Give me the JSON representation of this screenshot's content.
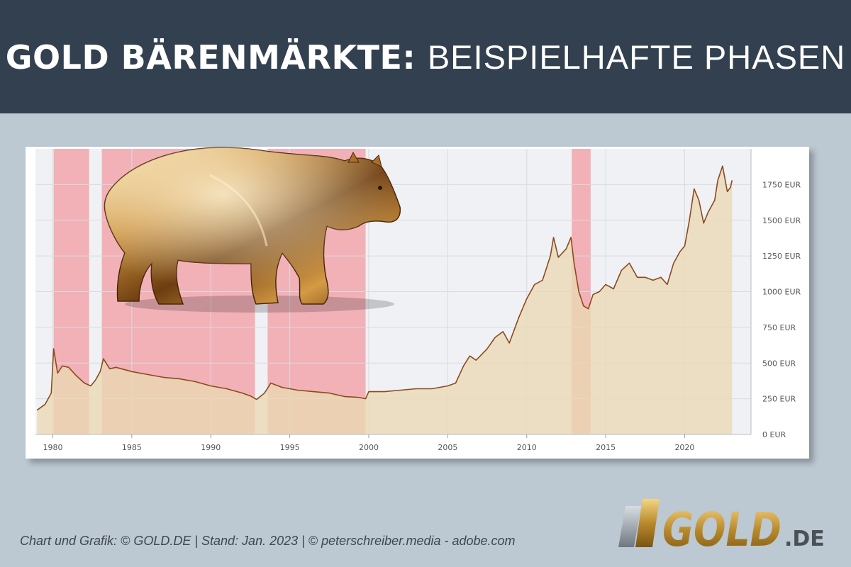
{
  "header": {
    "title_bold": "GOLD BÄRENMÄRKTE:",
    "title_light": "BEISPIELHAFTE PHASEN",
    "background": "#33404f"
  },
  "footer": {
    "credit": "Chart und Grafik: © GOLD.DE  |  Stand: Jan. 2023  |  © peterschreiber.media - adobe.com"
  },
  "logo": {
    "text_main": "GOLD",
    "text_suffix": ".DE"
  },
  "illustration": {
    "subject": "golden-bear-figure"
  },
  "chart_data": {
    "type": "area",
    "title": "",
    "xlabel": "",
    "ylabel": "",
    "xlim": [
      1978.9,
      2024.2
    ],
    "ylim": [
      0,
      2000
    ],
    "x_ticks": [
      1980,
      1985,
      1990,
      1995,
      2000,
      2005,
      2010,
      2015,
      2020
    ],
    "y_ticks": [
      {
        "value": 0,
        "label": "0 EUR"
      },
      {
        "value": 250,
        "label": "250 EUR"
      },
      {
        "value": 500,
        "label": "500 EUR"
      },
      {
        "value": 750,
        "label": "750 EUR"
      },
      {
        "value": 1000,
        "label": "1000 EUR"
      },
      {
        "value": 1250,
        "label": "1250 EUR"
      },
      {
        "value": 1500,
        "label": "1500 EUR"
      },
      {
        "value": 1750,
        "label": "1750 EUR"
      }
    ],
    "grid": true,
    "axis_position": "right",
    "colors": {
      "line": "#8b4a1e",
      "fill": "#ead9b4",
      "bear_band": "#f2a6ab"
    },
    "series": [
      {
        "x": [
          1979.0,
          1979.5,
          1979.9,
          1980.05,
          1980.3,
          1980.6,
          1981.0,
          1981.5,
          1982.0,
          1982.4,
          1982.7,
          1983.0,
          1983.2,
          1983.6,
          1984.0,
          1985.0,
          1986.0,
          1987.0,
          1988.0,
          1989.0,
          1990.0,
          1991.0,
          1992.0,
          1992.5,
          1992.9,
          1993.4,
          1993.8,
          1994.5,
          1995.5,
          1996.5,
          1997.5,
          1998.5,
          1999.3,
          1999.8,
          2000.0,
          2001.0,
          2002.0,
          2003.0,
          2004.0,
          2005.0,
          2005.5,
          2006.0,
          2006.4,
          2006.8,
          2007.5,
          2008.0,
          2008.5,
          2008.9,
          2009.5,
          2010.0,
          2010.5,
          2011.0,
          2011.5,
          2011.7,
          2012.0,
          2012.5,
          2012.8,
          2013.0,
          2013.3,
          2013.6,
          2013.9,
          2014.2,
          2014.6,
          2015.0,
          2015.5,
          2016.0,
          2016.5,
          2017.0,
          2017.5,
          2018.0,
          2018.5,
          2018.9,
          2019.3,
          2019.7,
          2020.0,
          2020.3,
          2020.6,
          2020.9,
          2021.2,
          2021.5,
          2021.9,
          2022.1,
          2022.4,
          2022.7,
          2022.9,
          2023.0
        ],
        "y": [
          170,
          210,
          290,
          600,
          430,
          480,
          470,
          410,
          360,
          340,
          380,
          440,
          530,
          460,
          470,
          440,
          420,
          400,
          390,
          370,
          340,
          320,
          290,
          270,
          245,
          290,
          360,
          330,
          310,
          300,
          290,
          265,
          260,
          250,
          300,
          300,
          310,
          320,
          320,
          340,
          360,
          480,
          550,
          520,
          600,
          680,
          720,
          640,
          820,
          950,
          1050,
          1080,
          1250,
          1380,
          1240,
          1300,
          1380,
          1200,
          1000,
          900,
          880,
          980,
          1000,
          1050,
          1020,
          1150,
          1200,
          1100,
          1100,
          1080,
          1100,
          1050,
          1200,
          1280,
          1320,
          1500,
          1720,
          1640,
          1480,
          1560,
          1640,
          1780,
          1880,
          1700,
          1730,
          1780
        ]
      }
    ],
    "bear_periods": [
      {
        "start": 1980.05,
        "end": 1982.3
      },
      {
        "start": 1983.1,
        "end": 1992.8
      },
      {
        "start": 1993.6,
        "end": 1999.8
      },
      {
        "start": 2012.85,
        "end": 2014.05
      }
    ]
  }
}
